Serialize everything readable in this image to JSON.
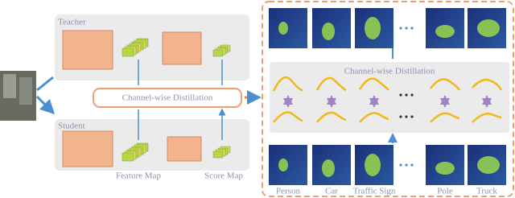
{
  "teacher_label": "Teacher",
  "student_label": "Student",
  "distillation_label": "Channel-wise Distillation",
  "feature_map_label": "Feature Map",
  "score_map_label": "Score Map",
  "right_panel": {
    "title": "Channel-wise Distillation",
    "classes": [
      "Person",
      "Car",
      "Traffic Sign",
      "Pole",
      "Truck"
    ]
  }
}
